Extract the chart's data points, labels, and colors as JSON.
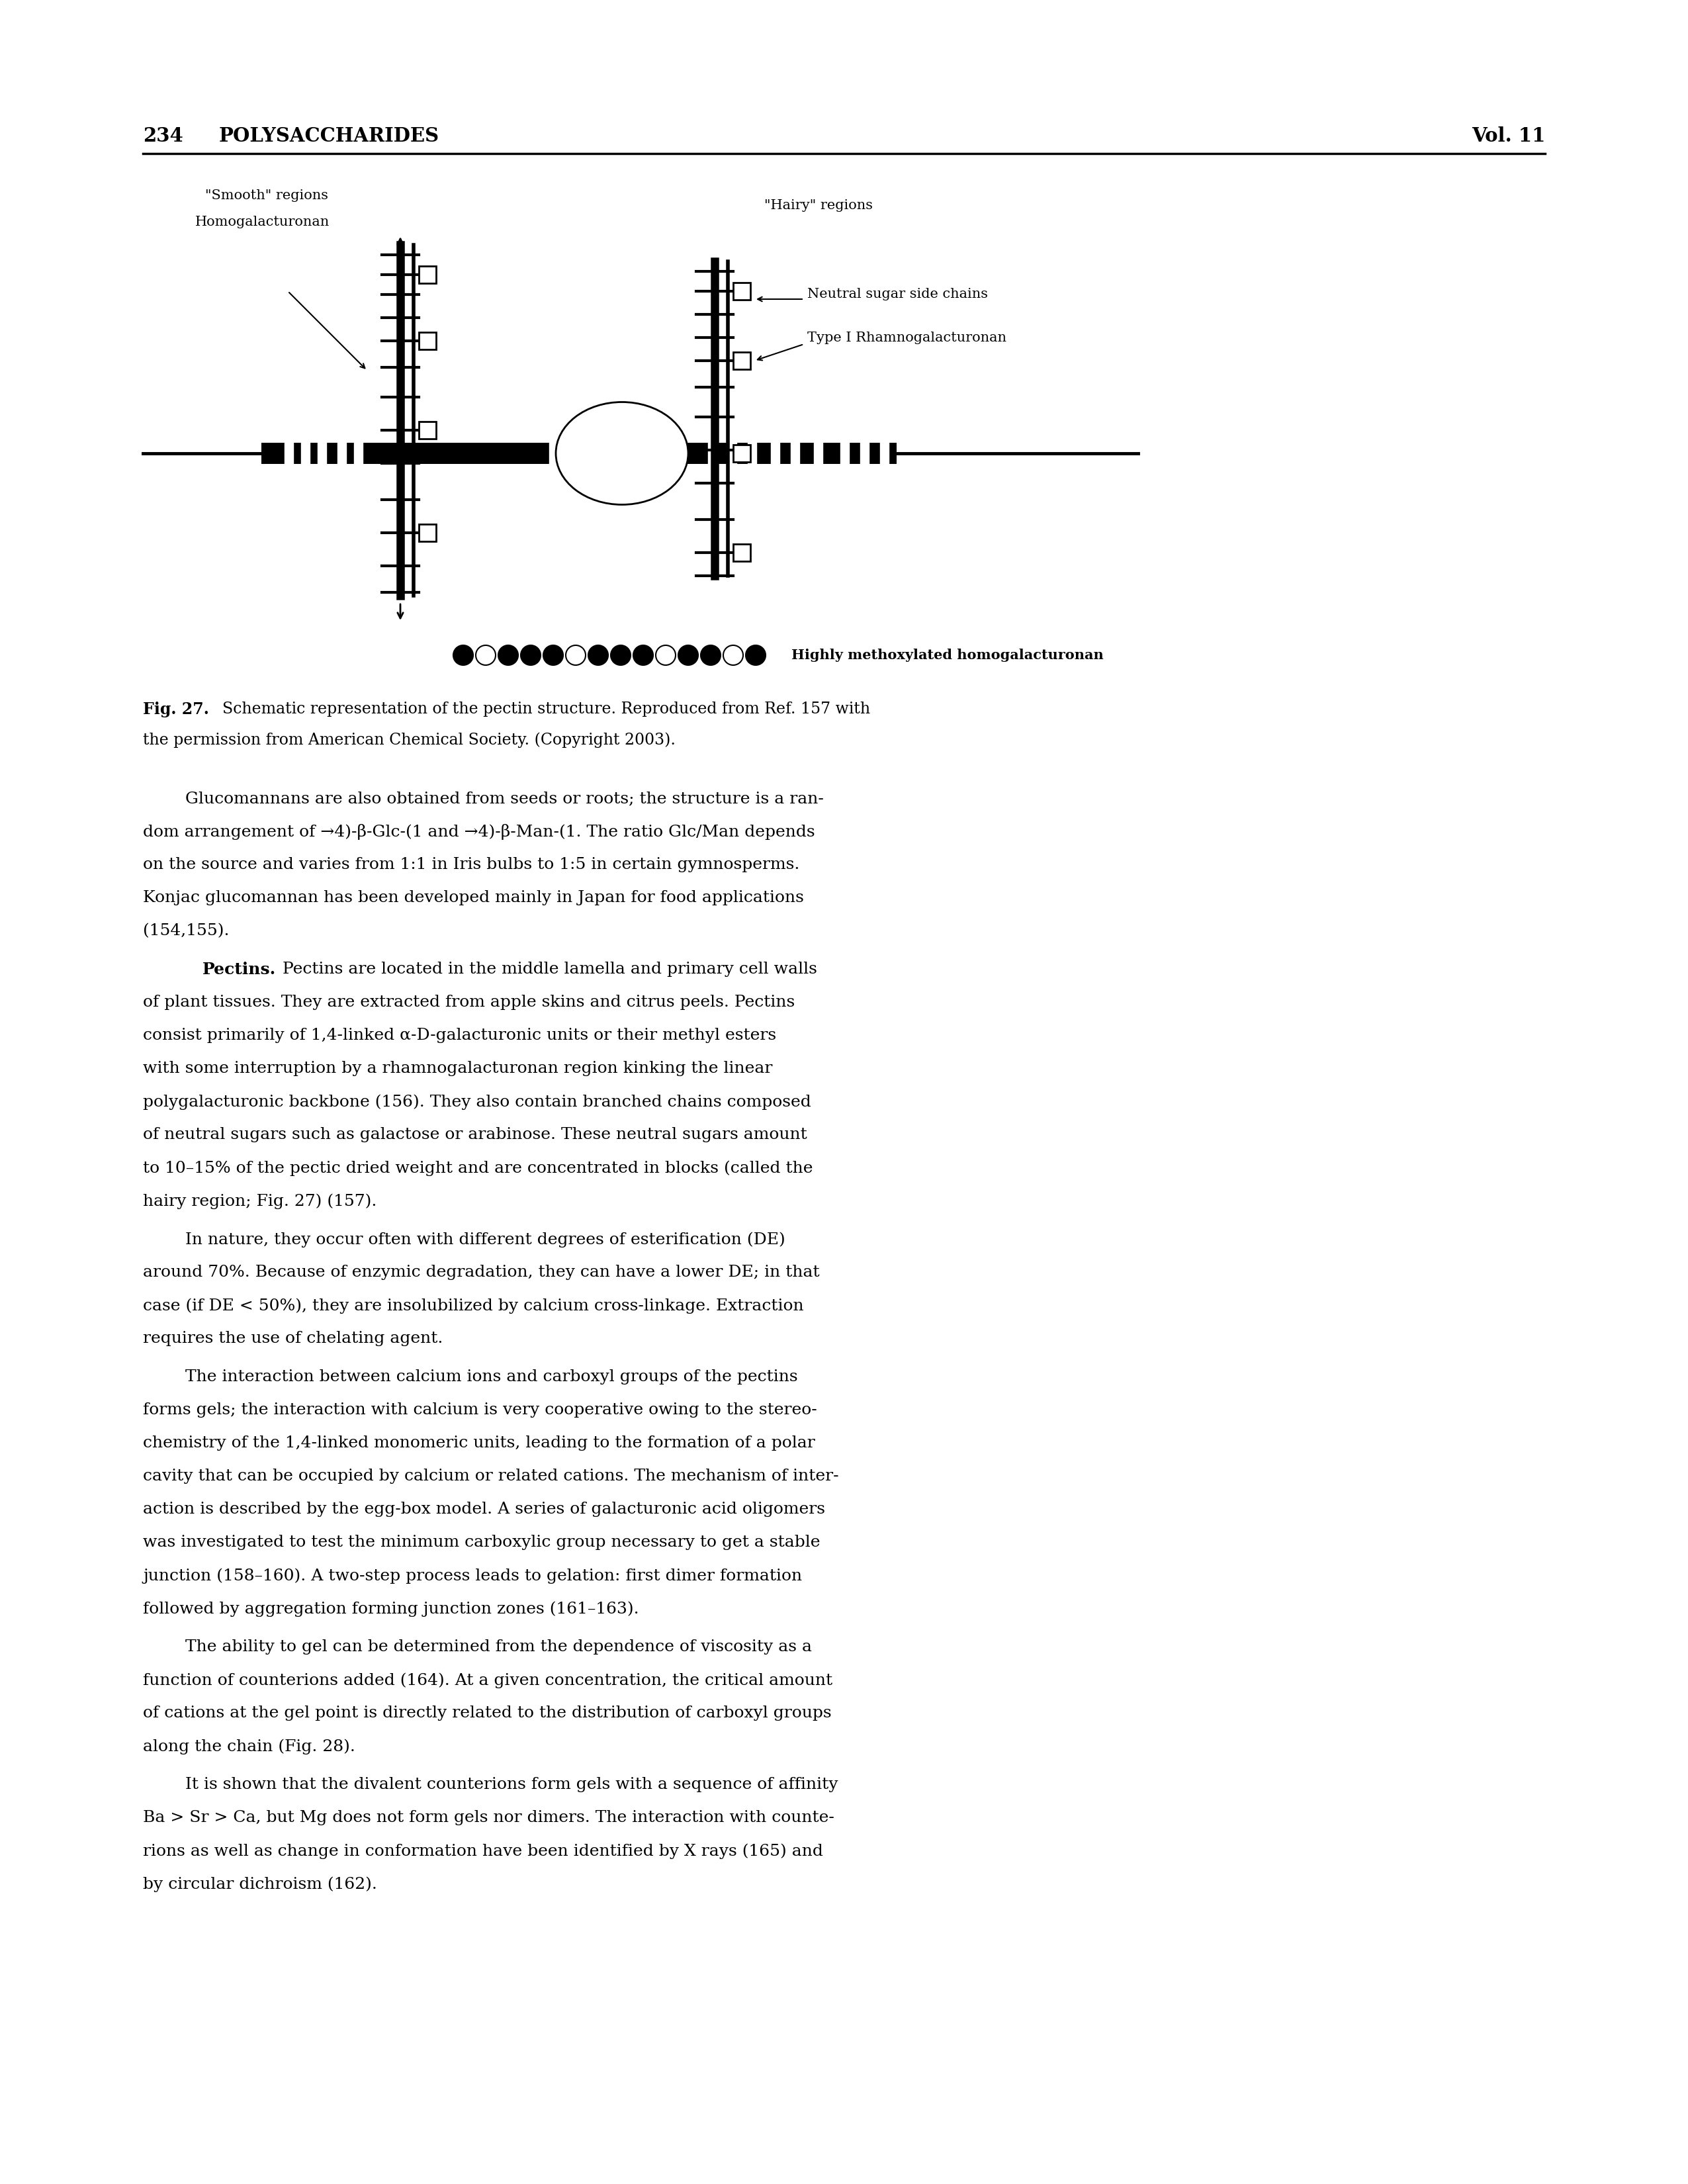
{
  "page_number": "234",
  "header_title": "POLYSACCHARIDES",
  "header_vol": "Vol. 11",
  "label_smooth": "\"Smooth\" regions",
  "label_homogalacturonan": "Homogalacturonan",
  "label_hairy": "\"Hairy\" regions",
  "label_neutral": "Neutral sugar side chains",
  "label_type1": "Type I Rhamnogalacturonan",
  "label_highly": "Highly methoxylated homogalacturonan",
  "fig_caption_bold": "Fig. 27.",
  "fig_caption_rest": "  Schematic representation of the pectin structure. Reproduced from Ref. 157 with",
  "fig_caption_line2": "the permission from American Chemical Society. (Copyright 2003).",
  "para1": [
    "        Glucomannans are also obtained from seeds or roots; the structure is a ran-",
    "dom arrangement of →4)-β-Glc-(1 and →4)-β-Man-(1. The ratio Glc/Man depends",
    "on the source and varies from 1:1 in Iris bulbs to 1:5 in certain gymnosperms.",
    "Konjac glucomannan has been developed mainly in Japan for food applications",
    "(154,155)."
  ],
  "para2_bold": "Pectins.",
  "para2_rest": "  Pectins are located in the middle lamella and primary cell walls",
  "para2_cont": [
    "of plant tissues. They are extracted from apple skins and citrus peels. Pectins",
    "consist primarily of 1,4-linked α-D-galacturonic units or their methyl esters",
    "with some interruption by a rhamnogalacturonan region kinking the linear",
    "polygalacturonic backbone (156). They also contain branched chains composed",
    "of neutral sugars such as galactose or arabinose. These neutral sugars amount",
    "to 10–15% of the pectic dried weight and are concentrated in blocks (called the",
    "hairy region; Fig. 27) (157)."
  ],
  "para3": [
    "        In nature, they occur often with different degrees of esterification (DE)",
    "around 70%. Because of enzymic degradation, they can have a lower DE; in that",
    "case (if DE < 50%), they are insolubilized by calcium cross-linkage. Extraction",
    "requires the use of chelating agent."
  ],
  "para4": [
    "        The interaction between calcium ions and carboxyl groups of the pectins",
    "forms gels; the interaction with calcium is very cooperative owing to the stereo-",
    "chemistry of the 1,4-linked monomeric units, leading to the formation of a polar",
    "cavity that can be occupied by calcium or related cations. The mechanism of inter-",
    "action is described by the egg-box model. A series of galacturonic acid oligomers",
    "was investigated to test the minimum carboxylic group necessary to get a stable",
    "junction (158–160). A two-step process leads to gelation: first dimer formation",
    "followed by aggregation forming junction zones (161–163)."
  ],
  "para5": [
    "        The ability to gel can be determined from the dependence of viscosity as a",
    "function of counterions added (164). At a given concentration, the critical amount",
    "of cations at the gel point is directly related to the distribution of carboxyl groups",
    "along the chain (Fig. 28)."
  ],
  "para6": [
    "        It is shown that the divalent counterions form gels with a sequence of affinity",
    "Ba > Sr > Ca, but Mg does not form gels nor dimers. The interaction with counte-",
    "rions as well as change in conformation have been identified by X rays (165) and",
    "by circular dichroism (162)."
  ],
  "bg": "#ffffff",
  "fg": "#000000"
}
